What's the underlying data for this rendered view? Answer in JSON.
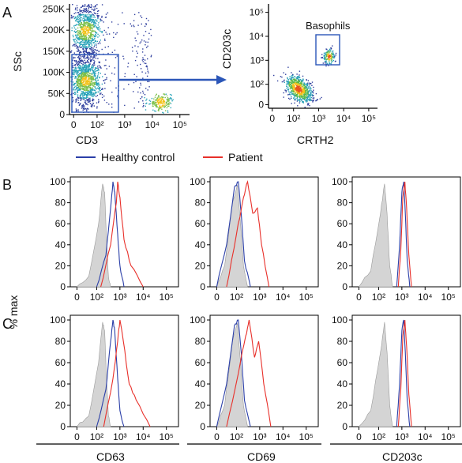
{
  "figure": {
    "panel_letters": [
      "A",
      "B",
      "C"
    ],
    "shared_ylabel": "% max",
    "legend": [
      {
        "label": "Healthy control",
        "color": "#2b3fa8"
      },
      {
        "label": "Patient",
        "color": "#e8302a"
      }
    ],
    "colors": {
      "healthy": "#2b3fa8",
      "patient": "#e8302a",
      "isotype_fill": "#d4d4d4",
      "gate": "#2b56b8",
      "arrow": "#2b56b8"
    }
  },
  "chart_data": [
    {
      "id": "A1",
      "type": "scatter",
      "xlabel": "CD3",
      "ylabel": "SSc",
      "x_scale": "log",
      "x_ticks": [
        "0",
        "10²",
        "10³",
        "10⁴",
        "10⁵"
      ],
      "y_ticks": [
        "0",
        "50K",
        "100K",
        "150K",
        "200K",
        "250K"
      ],
      "ylim": [
        0,
        262144
      ],
      "gate": {
        "x_range": [
          "0",
          "10³"
        ],
        "y_range": [
          0,
          130000
        ]
      },
      "clusters": [
        {
          "name": "",
          "x_center": 50,
          "y_center": 200000,
          "density": "high"
        },
        {
          "name": "",
          "x_center": 50,
          "y_center": 80000,
          "density": "high"
        },
        {
          "name": "",
          "x_center": 20000,
          "y_center": 30000,
          "density": "medium"
        }
      ]
    },
    {
      "id": "A2",
      "type": "scatter",
      "xlabel": "CRTH2",
      "ylabel": "CD203c",
      "x_scale": "log",
      "y_scale": "log",
      "x_ticks": [
        "0",
        "10²",
        "10³",
        "10⁴",
        "10⁵"
      ],
      "y_ticks": [
        "0",
        "10²",
        "10³",
        "10⁴",
        "10⁵"
      ],
      "gate": {
        "name": "Basophils",
        "x_range": [
          1000,
          10000
        ],
        "y_range": [
          300,
          4000
        ]
      },
      "clusters": [
        {
          "name": "",
          "x_center": 150,
          "y_center": 80,
          "density": "high"
        },
        {
          "name": "Basophils",
          "x_center": 2500,
          "y_center": 1500,
          "density": "medium"
        }
      ]
    },
    {
      "id": "B-CD63",
      "type": "area",
      "xlabel": "",
      "ylabel": "",
      "ylim": [
        0,
        100
      ],
      "x_ticks": [
        "0",
        "10²",
        "10³",
        "10⁴",
        "10⁵"
      ],
      "y_ticks": [
        "0",
        "20",
        "40",
        "60",
        "80",
        "100"
      ],
      "series": [
        {
          "name": "",
          "role": "isotype",
          "x": [
            0,
            60,
            120,
            180,
            220,
            260,
            320,
            400
          ],
          "y": [
            0,
            10,
            60,
            98,
            90,
            50,
            10,
            0
          ]
        },
        {
          "name": "Healthy control",
          "role": "healthy",
          "x": [
            100,
            250,
            400,
            500,
            600,
            800,
            1000,
            1500
          ],
          "y": [
            0,
            30,
            75,
            100,
            90,
            50,
            20,
            0
          ]
        },
        {
          "name": "Patient",
          "role": "patient",
          "x": [
            150,
            400,
            700,
            800,
            1000,
            1500,
            3000,
            10000
          ],
          "y": [
            0,
            40,
            80,
            100,
            85,
            45,
            20,
            0
          ]
        }
      ]
    },
    {
      "id": "B-CD69",
      "type": "area",
      "xlabel": "",
      "ylabel": "",
      "ylim": [
        0,
        100
      ],
      "x_ticks": [
        "0",
        "10²",
        "10³",
        "10⁴",
        "10⁵"
      ],
      "y_ticks": [
        "0",
        "20",
        "40",
        "60",
        "80",
        "100"
      ],
      "series": [
        {
          "name": "",
          "role": "isotype",
          "x": [
            0,
            40,
            80,
            110,
            150,
            200,
            300
          ],
          "y": [
            0,
            20,
            80,
            97,
            60,
            20,
            0
          ]
        },
        {
          "name": "Healthy control",
          "role": "healthy",
          "x": [
            0,
            50,
            90,
            120,
            160,
            220,
            400
          ],
          "y": [
            0,
            40,
            95,
            100,
            70,
            25,
            0
          ]
        },
        {
          "name": "Patient",
          "role": "patient",
          "x": [
            50,
            100,
            200,
            300,
            500,
            800,
            1200,
            2500
          ],
          "y": [
            0,
            50,
            85,
            100,
            70,
            75,
            40,
            0
          ]
        }
      ]
    },
    {
      "id": "B-CD203c",
      "type": "area",
      "xlabel": "",
      "ylabel": "",
      "ylim": [
        0,
        100
      ],
      "x_ticks": [
        "0",
        "10²",
        "10³",
        "10⁴",
        "10⁵"
      ],
      "y_ticks": [
        "0",
        "20",
        "40",
        "60",
        "80",
        "100"
      ],
      "series": [
        {
          "name": "",
          "role": "isotype",
          "x": [
            0,
            60,
            120,
            180,
            230,
            300,
            400
          ],
          "y": [
            0,
            15,
            70,
            98,
            70,
            20,
            0
          ]
        },
        {
          "name": "Healthy control",
          "role": "healthy",
          "x": [
            600,
            800,
            1000,
            1200,
            1400,
            1700,
            2200
          ],
          "y": [
            0,
            40,
            90,
            100,
            70,
            25,
            0
          ]
        },
        {
          "name": "Patient",
          "role": "patient",
          "x": [
            700,
            900,
            1100,
            1350,
            1600,
            2000,
            2600
          ],
          "y": [
            0,
            35,
            85,
            100,
            75,
            30,
            0
          ]
        }
      ]
    },
    {
      "id": "C-CD63",
      "type": "area",
      "xlabel": "CD63",
      "ylabel": "",
      "ylim": [
        0,
        100
      ],
      "x_ticks": [
        "0",
        "10²",
        "10³",
        "10⁴",
        "10⁵"
      ],
      "y_ticks": [
        "0",
        "20",
        "40",
        "60",
        "80",
        "100"
      ],
      "series": [
        {
          "name": "",
          "role": "isotype",
          "x": [
            0,
            60,
            120,
            180,
            220,
            260,
            320,
            400
          ],
          "y": [
            0,
            10,
            60,
            98,
            90,
            50,
            10,
            0
          ]
        },
        {
          "name": "Healthy control",
          "role": "healthy",
          "x": [
            100,
            250,
            400,
            500,
            600,
            800,
            1000,
            1500
          ],
          "y": [
            0,
            35,
            80,
            100,
            90,
            45,
            15,
            0
          ]
        },
        {
          "name": "Patient",
          "role": "patient",
          "x": [
            200,
            500,
            800,
            1000,
            1400,
            2500,
            5000,
            20000
          ],
          "y": [
            0,
            45,
            80,
            100,
            80,
            40,
            25,
            0
          ]
        }
      ]
    },
    {
      "id": "C-CD69",
      "type": "area",
      "xlabel": "CD69",
      "ylabel": "",
      "ylim": [
        0,
        100
      ],
      "x_ticks": [
        "0",
        "10²",
        "10³",
        "10⁴",
        "10⁵"
      ],
      "y_ticks": [
        "0",
        "20",
        "40",
        "60",
        "80",
        "100"
      ],
      "series": [
        {
          "name": "",
          "role": "isotype",
          "x": [
            0,
            40,
            80,
            110,
            150,
            200,
            300
          ],
          "y": [
            0,
            20,
            80,
            97,
            60,
            20,
            0
          ]
        },
        {
          "name": "Healthy control",
          "role": "healthy",
          "x": [
            0,
            50,
            90,
            120,
            160,
            220,
            400
          ],
          "y": [
            0,
            40,
            95,
            100,
            70,
            25,
            0
          ]
        },
        {
          "name": "Patient",
          "role": "patient",
          "x": [
            50,
            120,
            250,
            350,
            600,
            900,
            1500,
            3000
          ],
          "y": [
            0,
            50,
            85,
            100,
            65,
            80,
            40,
            0
          ]
        }
      ]
    },
    {
      "id": "C-CD203c",
      "type": "area",
      "xlabel": "CD203c",
      "ylabel": "",
      "ylim": [
        0,
        100
      ],
      "x_ticks": [
        "0",
        "10²",
        "10³",
        "10⁴",
        "10⁵"
      ],
      "y_ticks": [
        "0",
        "20",
        "40",
        "60",
        "80",
        "100"
      ],
      "series": [
        {
          "name": "",
          "role": "isotype",
          "x": [
            0,
            60,
            120,
            180,
            230,
            300,
            400
          ],
          "y": [
            0,
            15,
            70,
            98,
            70,
            20,
            0
          ]
        },
        {
          "name": "Healthy control",
          "role": "healthy",
          "x": [
            600,
            800,
            1000,
            1200,
            1400,
            1700,
            2200
          ],
          "y": [
            0,
            40,
            90,
            100,
            70,
            25,
            0
          ]
        },
        {
          "name": "Patient",
          "role": "patient",
          "x": [
            700,
            900,
            1100,
            1350,
            1600,
            2000,
            2600
          ],
          "y": [
            0,
            35,
            85,
            100,
            75,
            30,
            0
          ]
        }
      ]
    }
  ]
}
